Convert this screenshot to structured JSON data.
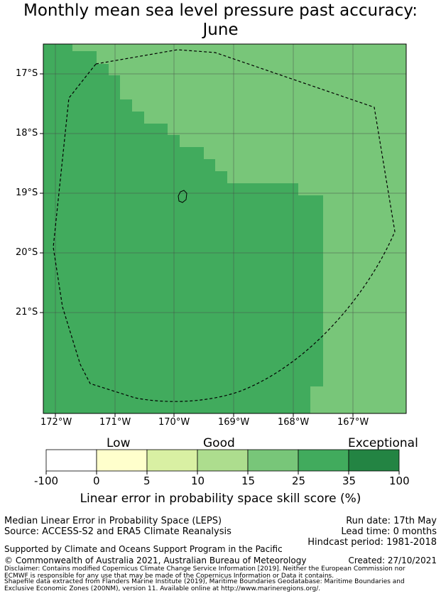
{
  "title": {
    "line1": "Monthly mean sea level pressure past accuracy:",
    "line2": "June"
  },
  "map": {
    "longitude_labels": [
      "172°W",
      "171°W",
      "170°W",
      "169°W",
      "168°W",
      "167°W"
    ],
    "latitude_labels": [
      "17°S",
      "18°S",
      "19°S",
      "20°S",
      "21°S"
    ],
    "colors": {
      "band_15_25": "#78c679",
      "band_25_35": "#41ab5d",
      "boundary": "#000000",
      "grid": "#444444"
    },
    "boundary_style": "dashed EEZ outline",
    "island": "small island outline near 19°S 169.9°W"
  },
  "colorbar": {
    "category_labels": [
      "Low",
      "Good",
      "Exceptional"
    ],
    "tick_labels": [
      "-100",
      "0",
      "5",
      "10",
      "15",
      "25",
      "35",
      "100"
    ],
    "colors": [
      "#ffffff",
      "#ffffcc",
      "#d9f0a3",
      "#addd8e",
      "#78c679",
      "#41ab5d",
      "#238443"
    ],
    "title": "Linear error in probability space skill score (%)"
  },
  "footer": {
    "method": "Median Linear Error in Probability Space (LEPS)",
    "source": "Source: ACCESS-S2 and ERA5 Climate Reanalysis",
    "run_date": "Run date: 17th May",
    "lead_time": "Lead time: 0 months",
    "hindcast": "Hindcast period: 1981-2018",
    "supported": "Supported by Climate and Oceans Support Program in the Pacific",
    "copyright": "© Commonwealth of Australia 2021, Australian Bureau of Meteorology",
    "created": "Created: 27/10/2021",
    "disclaimer1": "Disclaimer: Contains modified Copernicus Climate Change Service Information [2019]. Neither the European Commission nor",
    "disclaimer2": "ECMWF is responsible for any use that may be made of the Copernicus Information or Data it contains.",
    "shapefile1": "Shapefile data extracted from Flanders Marine Institute (2019), Maritime Boundaries Geodatabase: Maritime Boundaries and",
    "shapefile2": "Exclusive Economic Zones (200NM), version 11. Available online at http://www.marineregions.org/."
  }
}
